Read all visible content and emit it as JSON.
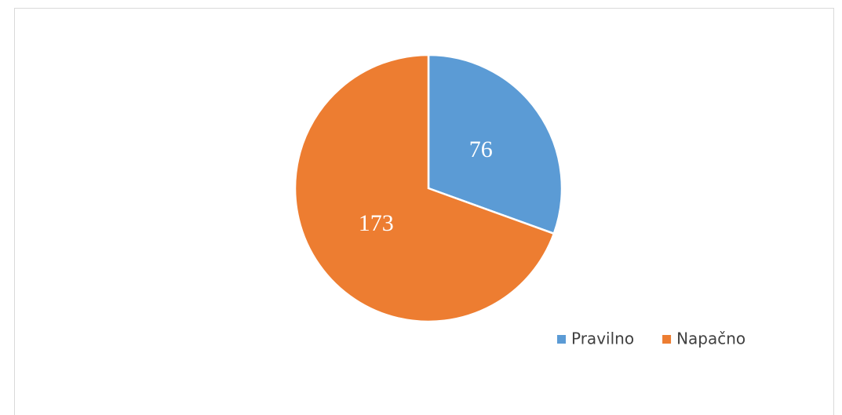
{
  "chart_data": {
    "type": "pie",
    "categories": [
      "Pravilno",
      "Napačno"
    ],
    "values": [
      76,
      173
    ],
    "colors": [
      "#5b9bd5",
      "#ed7d31"
    ],
    "legend": "bottom-right"
  }
}
